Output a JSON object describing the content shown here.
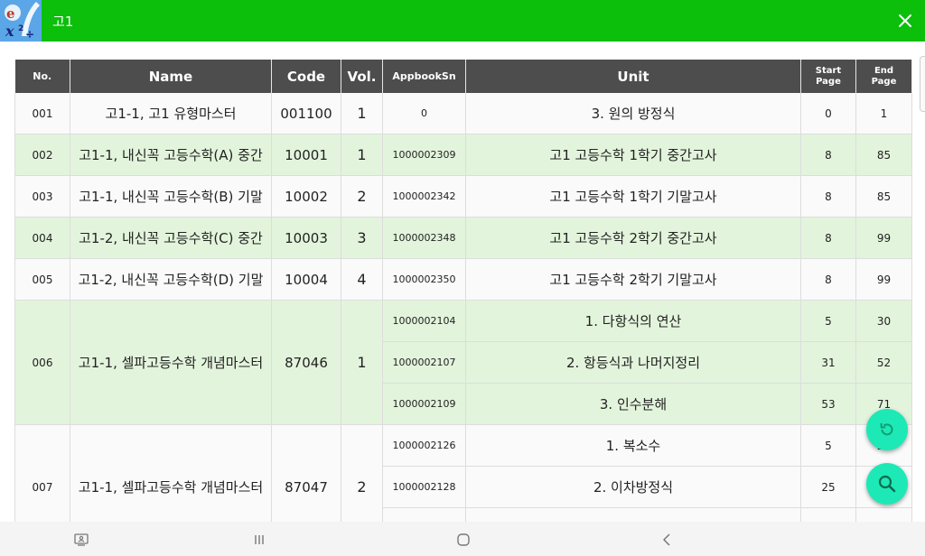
{
  "search": {
    "value": "고1"
  },
  "table": {
    "headers": {
      "no": "No.",
      "name": "Name",
      "code": "Code",
      "vol": "Vol.",
      "appbook": "AppbookSn",
      "unit": "Unit",
      "start_1": "Start",
      "start_2": "Page",
      "end_1": "End",
      "end_2": "Page"
    },
    "rows": [
      {
        "no": "001",
        "name": "고1-1, 고1 유형마스터",
        "code": "001100",
        "vol": "1",
        "units": [
          {
            "appbook": "0",
            "unit": "3. 원의 방정식",
            "start": "0",
            "end": "1"
          }
        ]
      },
      {
        "no": "002",
        "name": "고1-1, 내신꼭 고등수학(A) 중간",
        "code": "10001",
        "vol": "1",
        "units": [
          {
            "appbook": "1000002309",
            "unit": "고1 고등수학 1학기 중간고사",
            "start": "8",
            "end": "85"
          }
        ]
      },
      {
        "no": "003",
        "name": "고1-1, 내신꼭 고등수학(B) 기말",
        "code": "10002",
        "vol": "2",
        "units": [
          {
            "appbook": "1000002342",
            "unit": "고1 고등수학 1학기 기말고사",
            "start": "8",
            "end": "85"
          }
        ]
      },
      {
        "no": "004",
        "name": "고1-2, 내신꼭 고등수학(C) 중간",
        "code": "10003",
        "vol": "3",
        "units": [
          {
            "appbook": "1000002348",
            "unit": "고1 고등수학 2학기 중간고사",
            "start": "8",
            "end": "99"
          }
        ]
      },
      {
        "no": "005",
        "name": "고1-2, 내신꼭 고등수학(D) 기말",
        "code": "10004",
        "vol": "4",
        "units": [
          {
            "appbook": "1000002350",
            "unit": "고1 고등수학 2학기 기말고사",
            "start": "8",
            "end": "99"
          }
        ]
      },
      {
        "no": "006",
        "name": "고1-1, 셀파고등수학 개념마스터",
        "code": "87046",
        "vol": "1",
        "units": [
          {
            "appbook": "1000002104",
            "unit": "1. 다항식의 연산",
            "start": "5",
            "end": "30"
          },
          {
            "appbook": "1000002107",
            "unit": "2. 항등식과 나머지정리",
            "start": "31",
            "end": "52"
          },
          {
            "appbook": "1000002109",
            "unit": "3. 인수분해",
            "start": "53",
            "end": "71"
          }
        ]
      },
      {
        "no": "007",
        "name": "고1-1, 셀파고등수학 개념마스터",
        "code": "87047",
        "vol": "2",
        "units": [
          {
            "appbook": "1000002126",
            "unit": "1. 복소수",
            "start": "5",
            "end": "24"
          },
          {
            "appbook": "1000002128",
            "unit": "2. 이차방정식",
            "start": "25",
            "end": ""
          },
          {
            "appbook": "",
            "unit": "",
            "start": "",
            "end": ""
          }
        ]
      }
    ]
  },
  "icons": {
    "logo": "app-logo-icon",
    "close": "close-icon",
    "refresh": "refresh-icon",
    "search": "search-icon",
    "nav_screenshot": "screenshot-icon",
    "nav_recents": "recents-icon",
    "nav_home": "home-icon",
    "nav_back": "back-icon"
  },
  "colors": {
    "topbar": "#0bbf0b",
    "header": "#4d4d4d",
    "row_alt": "#e3f4dc",
    "fab": "#1de9b6"
  }
}
